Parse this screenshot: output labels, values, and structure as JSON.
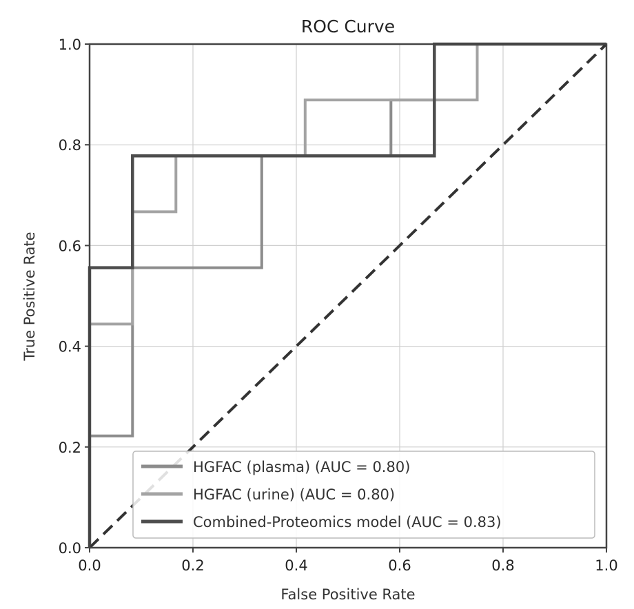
{
  "chart_data": {
    "type": "line",
    "title": "ROC Curve",
    "xlabel": "False Positive Rate",
    "ylabel": "True Positive Rate",
    "xlim": [
      0.0,
      1.0
    ],
    "ylim": [
      0.0,
      1.0
    ],
    "x_ticks": [
      "0.0",
      "0.2",
      "0.4",
      "0.6",
      "0.8",
      "1.0"
    ],
    "y_ticks": [
      "0.0",
      "0.2",
      "0.4",
      "0.6",
      "0.8",
      "1.0"
    ],
    "grid": true,
    "legend_position": "lower-right",
    "series": [
      {
        "name": "HGFAC (plasma) (AUC = 0.80)",
        "color": "#8c8c8c",
        "x": [
          0.0,
          0.0,
          0.083,
          0.083,
          0.333,
          0.333,
          0.417,
          0.417,
          0.583,
          0.583,
          0.667,
          0.667,
          1.0
        ],
        "y": [
          0.0,
          0.222,
          0.222,
          0.556,
          0.556,
          0.778,
          0.778,
          0.778,
          0.778,
          0.889,
          0.889,
          1.0,
          1.0
        ]
      },
      {
        "name": "HGFAC (urine) (AUC = 0.80)",
        "color": "#a3a3a3",
        "x": [
          0.0,
          0.0,
          0.083,
          0.083,
          0.167,
          0.167,
          0.417,
          0.417,
          0.667,
          0.667,
          0.75,
          0.75,
          1.0
        ],
        "y": [
          0.0,
          0.444,
          0.444,
          0.667,
          0.667,
          0.778,
          0.778,
          0.889,
          0.889,
          0.889,
          0.889,
          1.0,
          1.0
        ]
      },
      {
        "name": "Combined-Proteomics model (AUC = 0.83)",
        "color": "#4d4d4d",
        "x": [
          0.0,
          0.0,
          0.083,
          0.083,
          0.667,
          0.667,
          1.0
        ],
        "y": [
          0.0,
          0.556,
          0.556,
          0.778,
          0.778,
          1.0,
          1.0
        ]
      }
    ],
    "reference_line": {
      "x": [
        0.0,
        1.0
      ],
      "y": [
        0.0,
        1.0
      ],
      "style": "dashed",
      "color": "#333333"
    }
  }
}
